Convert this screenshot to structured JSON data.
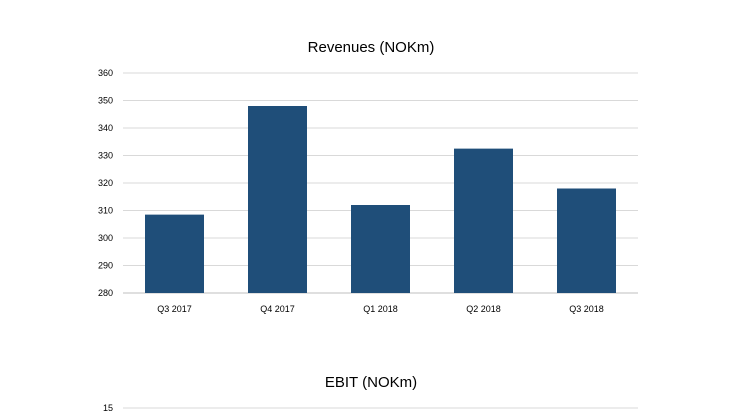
{
  "chart_data": [
    {
      "type": "bar",
      "title": "Revenues (NOKm)",
      "xlabel": "",
      "ylabel": "",
      "categories": [
        "Q3 2017",
        "Q4 2017",
        "Q1 2018",
        "Q2 2018",
        "Q3 2018"
      ],
      "values": [
        308.5,
        348,
        312,
        332.5,
        318
      ],
      "ylim": [
        280,
        360
      ],
      "yticks": [
        280,
        290,
        300,
        310,
        320,
        330,
        340,
        350,
        360
      ],
      "grid": true,
      "bar_color": "#1f4e79"
    },
    {
      "type": "bar",
      "title": "EBIT (NOKm)",
      "xlabel": "",
      "ylabel": "",
      "categories": [],
      "values": [],
      "yticks_visible": [
        15
      ],
      "grid": true
    }
  ],
  "colors": {
    "bar": "#1f4e79",
    "grid": "#d9d9d9",
    "axis": "#bfbfbf"
  }
}
